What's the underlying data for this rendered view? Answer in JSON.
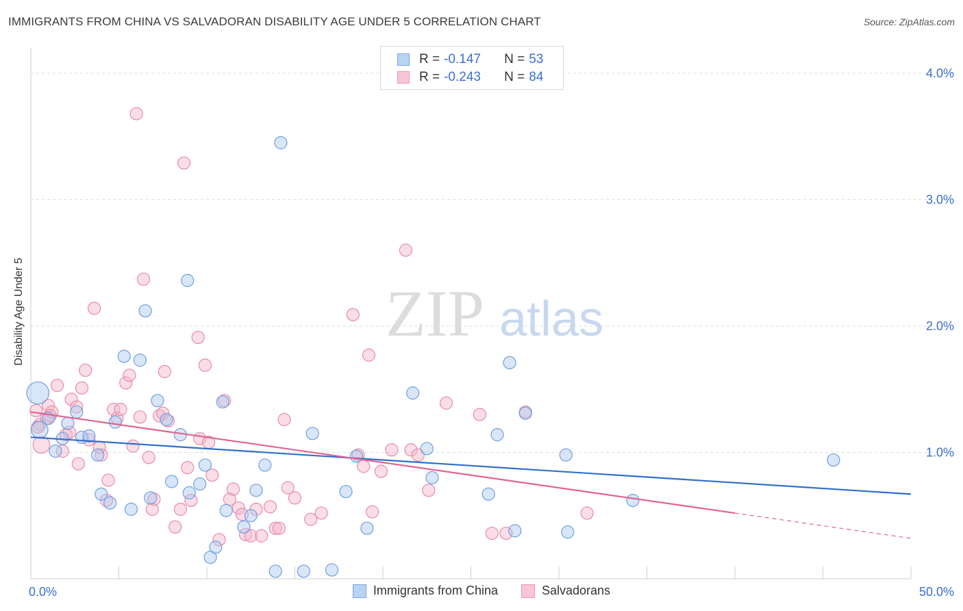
{
  "title": "IMMIGRANTS FROM CHINA VS SALVADORAN DISABILITY AGE UNDER 5 CORRELATION CHART",
  "source": "Source: ZipAtlas.com",
  "watermark": {
    "part1": "ZIP",
    "part2": "atlas"
  },
  "colors": {
    "blue_fill": "#a9c8f0",
    "blue_stroke": "#6f9fe0",
    "blue_line": "#2f6fcc",
    "pink_fill": "#f5b6c9",
    "pink_stroke": "#e88aa8",
    "pink_line": "#e06590",
    "grid": "#dddddd",
    "tick_label": "#3a6fd0"
  },
  "legend": {
    "rows": [
      {
        "r_label": "R =",
        "r_value": "-0.147",
        "n_label": "N =",
        "n_value": "53"
      },
      {
        "r_label": "R =",
        "r_value": "-0.243",
        "n_label": "N =",
        "n_value": "84"
      }
    ]
  },
  "chart_data": {
    "type": "scatter",
    "title": "IMMIGRANTS FROM CHINA VS SALVADORAN DISABILITY AGE UNDER 5 CORRELATION CHART",
    "ylabel": "Disability Age Under 5",
    "xlabel": "",
    "xlim": [
      0,
      50
    ],
    "ylim": [
      0,
      4.2
    ],
    "x_tick_labels": [
      "0.0%",
      "50.0%"
    ],
    "y_ticks": [
      1.0,
      2.0,
      3.0,
      4.0
    ],
    "y_tick_labels": [
      "1.0%",
      "2.0%",
      "3.0%",
      "4.0%"
    ],
    "grid": true,
    "series": [
      {
        "name": "Immigrants from China",
        "trend": {
          "x": [
            0,
            50
          ],
          "y": [
            1.12,
            0.67
          ]
        },
        "points": [
          {
            "x": 0.4,
            "y": 1.47,
            "s": 3
          },
          {
            "x": 0.5,
            "y": 1.18,
            "s": 2
          },
          {
            "x": 1.0,
            "y": 1.27
          },
          {
            "x": 1.4,
            "y": 1.01
          },
          {
            "x": 1.8,
            "y": 1.11
          },
          {
            "x": 2.1,
            "y": 1.23
          },
          {
            "x": 2.6,
            "y": 1.32
          },
          {
            "x": 2.9,
            "y": 1.12
          },
          {
            "x": 3.3,
            "y": 1.13
          },
          {
            "x": 3.8,
            "y": 0.98
          },
          {
            "x": 4.0,
            "y": 0.67
          },
          {
            "x": 4.5,
            "y": 0.6
          },
          {
            "x": 4.8,
            "y": 1.24
          },
          {
            "x": 5.3,
            "y": 1.76
          },
          {
            "x": 5.7,
            "y": 0.55
          },
          {
            "x": 6.2,
            "y": 1.73
          },
          {
            "x": 6.5,
            "y": 2.12
          },
          {
            "x": 6.8,
            "y": 0.64
          },
          {
            "x": 7.2,
            "y": 1.41
          },
          {
            "x": 7.7,
            "y": 1.26
          },
          {
            "x": 8.0,
            "y": 0.77
          },
          {
            "x": 8.5,
            "y": 1.14
          },
          {
            "x": 8.9,
            "y": 2.36
          },
          {
            "x": 9.0,
            "y": 0.68
          },
          {
            "x": 9.6,
            "y": 0.75
          },
          {
            "x": 9.9,
            "y": 0.9
          },
          {
            "x": 10.2,
            "y": 0.17
          },
          {
            "x": 10.5,
            "y": 0.25
          },
          {
            "x": 10.9,
            "y": 1.4
          },
          {
            "x": 11.1,
            "y": 0.54
          },
          {
            "x": 12.1,
            "y": 0.41
          },
          {
            "x": 12.5,
            "y": 0.5
          },
          {
            "x": 12.8,
            "y": 0.7
          },
          {
            "x": 13.3,
            "y": 0.9
          },
          {
            "x": 13.9,
            "y": 0.06
          },
          {
            "x": 14.2,
            "y": 3.45
          },
          {
            "x": 15.5,
            "y": 0.06
          },
          {
            "x": 16.0,
            "y": 1.15
          },
          {
            "x": 17.1,
            "y": 0.07
          },
          {
            "x": 17.9,
            "y": 0.69
          },
          {
            "x": 18.5,
            "y": 0.97
          },
          {
            "x": 19.1,
            "y": 0.4
          },
          {
            "x": 21.7,
            "y": 1.47
          },
          {
            "x": 22.5,
            "y": 1.03
          },
          {
            "x": 22.8,
            "y": 0.8
          },
          {
            "x": 26.0,
            "y": 0.67
          },
          {
            "x": 26.5,
            "y": 1.14
          },
          {
            "x": 27.2,
            "y": 1.71
          },
          {
            "x": 27.5,
            "y": 0.38
          },
          {
            "x": 28.1,
            "y": 1.31
          },
          {
            "x": 30.4,
            "y": 0.98
          },
          {
            "x": 30.5,
            "y": 0.37
          },
          {
            "x": 34.2,
            "y": 0.62
          },
          {
            "x": 45.6,
            "y": 0.94
          }
        ]
      },
      {
        "name": "Salvadorans",
        "trend": {
          "x": [
            0,
            40
          ],
          "y": [
            1.32,
            0.52
          ]
        },
        "trend_dashed": {
          "x": [
            40,
            50
          ],
          "y": [
            0.52,
            0.32
          ]
        },
        "points": [
          {
            "x": 0.3,
            "y": 1.33
          },
          {
            "x": 0.5,
            "y": 1.22
          },
          {
            "x": 0.6,
            "y": 1.06,
            "s": 2
          },
          {
            "x": 0.9,
            "y": 1.27
          },
          {
            "x": 1.0,
            "y": 1.37
          },
          {
            "x": 1.2,
            "y": 1.32
          },
          {
            "x": 1.5,
            "y": 1.53
          },
          {
            "x": 1.8,
            "y": 1.01
          },
          {
            "x": 2.0,
            "y": 1.14
          },
          {
            "x": 2.2,
            "y": 1.16
          },
          {
            "x": 2.3,
            "y": 1.42
          },
          {
            "x": 2.6,
            "y": 1.36
          },
          {
            "x": 2.7,
            "y": 0.91
          },
          {
            "x": 2.9,
            "y": 1.51
          },
          {
            "x": 3.1,
            "y": 1.65
          },
          {
            "x": 3.3,
            "y": 1.1
          },
          {
            "x": 3.6,
            "y": 2.14
          },
          {
            "x": 3.9,
            "y": 1.04
          },
          {
            "x": 4.0,
            "y": 0.98
          },
          {
            "x": 4.3,
            "y": 0.62
          },
          {
            "x": 4.4,
            "y": 0.78
          },
          {
            "x": 4.7,
            "y": 1.34
          },
          {
            "x": 4.9,
            "y": 1.27
          },
          {
            "x": 5.1,
            "y": 1.34
          },
          {
            "x": 5.4,
            "y": 1.55
          },
          {
            "x": 5.6,
            "y": 1.61
          },
          {
            "x": 5.8,
            "y": 1.05
          },
          {
            "x": 6.0,
            "y": 3.68
          },
          {
            "x": 6.2,
            "y": 1.28
          },
          {
            "x": 6.4,
            "y": 2.37
          },
          {
            "x": 6.7,
            "y": 0.96
          },
          {
            "x": 6.9,
            "y": 0.55
          },
          {
            "x": 7.0,
            "y": 0.63
          },
          {
            "x": 7.3,
            "y": 1.29
          },
          {
            "x": 7.5,
            "y": 1.31
          },
          {
            "x": 7.6,
            "y": 1.64
          },
          {
            "x": 7.8,
            "y": 1.25
          },
          {
            "x": 8.2,
            "y": 0.41
          },
          {
            "x": 8.5,
            "y": 0.55
          },
          {
            "x": 8.7,
            "y": 3.29
          },
          {
            "x": 8.9,
            "y": 0.88
          },
          {
            "x": 9.1,
            "y": 0.62
          },
          {
            "x": 9.5,
            "y": 1.91
          },
          {
            "x": 9.6,
            "y": 1.11
          },
          {
            "x": 9.9,
            "y": 1.69
          },
          {
            "x": 10.1,
            "y": 1.08
          },
          {
            "x": 10.3,
            "y": 0.82
          },
          {
            "x": 10.7,
            "y": 0.31
          },
          {
            "x": 11.0,
            "y": 1.41
          },
          {
            "x": 11.3,
            "y": 0.63
          },
          {
            "x": 11.5,
            "y": 0.71
          },
          {
            "x": 11.8,
            "y": 0.56
          },
          {
            "x": 12.0,
            "y": 0.51
          },
          {
            "x": 12.2,
            "y": 0.35
          },
          {
            "x": 12.5,
            "y": 0.34
          },
          {
            "x": 12.8,
            "y": 0.55
          },
          {
            "x": 13.1,
            "y": 0.34
          },
          {
            "x": 13.6,
            "y": 0.57
          },
          {
            "x": 13.9,
            "y": 0.4
          },
          {
            "x": 14.1,
            "y": 0.4
          },
          {
            "x": 14.4,
            "y": 1.26
          },
          {
            "x": 14.6,
            "y": 0.72
          },
          {
            "x": 15.0,
            "y": 0.64
          },
          {
            "x": 15.9,
            "y": 0.47
          },
          {
            "x": 16.5,
            "y": 0.52
          },
          {
            "x": 18.3,
            "y": 2.09
          },
          {
            "x": 18.6,
            "y": 0.98
          },
          {
            "x": 18.9,
            "y": 0.89
          },
          {
            "x": 19.2,
            "y": 1.77
          },
          {
            "x": 19.4,
            "y": 0.53
          },
          {
            "x": 19.9,
            "y": 0.85
          },
          {
            "x": 20.5,
            "y": 1.02
          },
          {
            "x": 21.3,
            "y": 2.6
          },
          {
            "x": 21.6,
            "y": 1.02
          },
          {
            "x": 22.0,
            "y": 0.98
          },
          {
            "x": 22.6,
            "y": 0.7
          },
          {
            "x": 23.6,
            "y": 1.39
          },
          {
            "x": 25.5,
            "y": 1.3
          },
          {
            "x": 26.2,
            "y": 0.36
          },
          {
            "x": 27.0,
            "y": 0.36
          },
          {
            "x": 28.1,
            "y": 1.32
          },
          {
            "x": 31.6,
            "y": 0.52
          },
          {
            "x": 0.4,
            "y": 1.2
          },
          {
            "x": 1.1,
            "y": 1.29
          }
        ]
      }
    ],
    "legend_placement": "top-center"
  }
}
